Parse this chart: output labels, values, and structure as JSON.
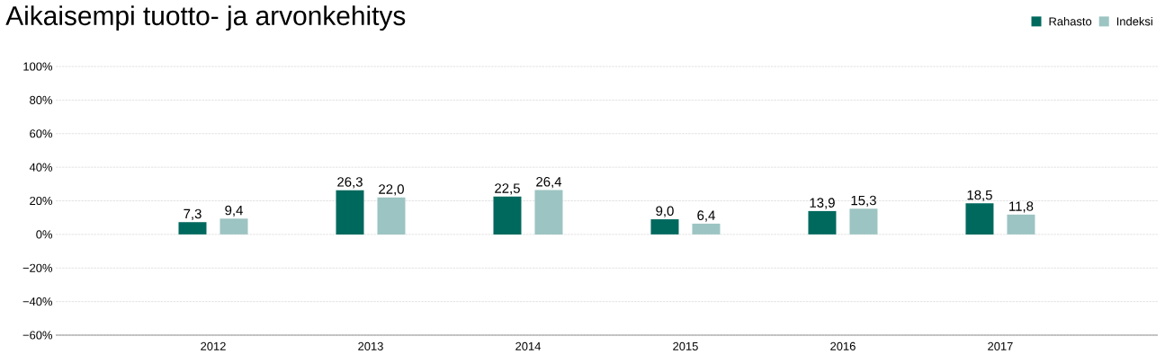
{
  "chart_data": {
    "type": "bar",
    "title": "Aikaisempi tuotto- ja arvonkehitys",
    "categories": [
      "2012",
      "2013",
      "2014",
      "2015",
      "2016",
      "2017"
    ],
    "series": [
      {
        "name": "Rahasto",
        "color": "#00695e",
        "values": [
          7.3,
          26.3,
          22.5,
          9.0,
          13.9,
          18.5
        ],
        "value_labels": [
          "7,3",
          "26,3",
          "22,5",
          "9,0",
          "13,9",
          "18,5"
        ]
      },
      {
        "name": "Indeksi",
        "color": "#9cc4c2",
        "values": [
          9.4,
          22.0,
          26.4,
          6.4,
          15.3,
          11.8
        ],
        "value_labels": [
          "9,4",
          "22,0",
          "26,4",
          "6,4",
          "15,3",
          "11,8"
        ]
      }
    ],
    "ylim": [
      -60,
      100
    ],
    "yticks": [
      {
        "value": -60,
        "label": "−60%"
      },
      {
        "value": -40,
        "label": "−40%"
      },
      {
        "value": -20,
        "label": "−20%"
      },
      {
        "value": 0,
        "label": "0%"
      },
      {
        "value": 20,
        "label": "20%"
      },
      {
        "value": 40,
        "label": "40%"
      },
      {
        "value": 60,
        "label": "60%"
      },
      {
        "value": 80,
        "label": "80%"
      },
      {
        "value": 100,
        "label": "100%"
      }
    ],
    "grid": "y",
    "legend": "top right"
  }
}
